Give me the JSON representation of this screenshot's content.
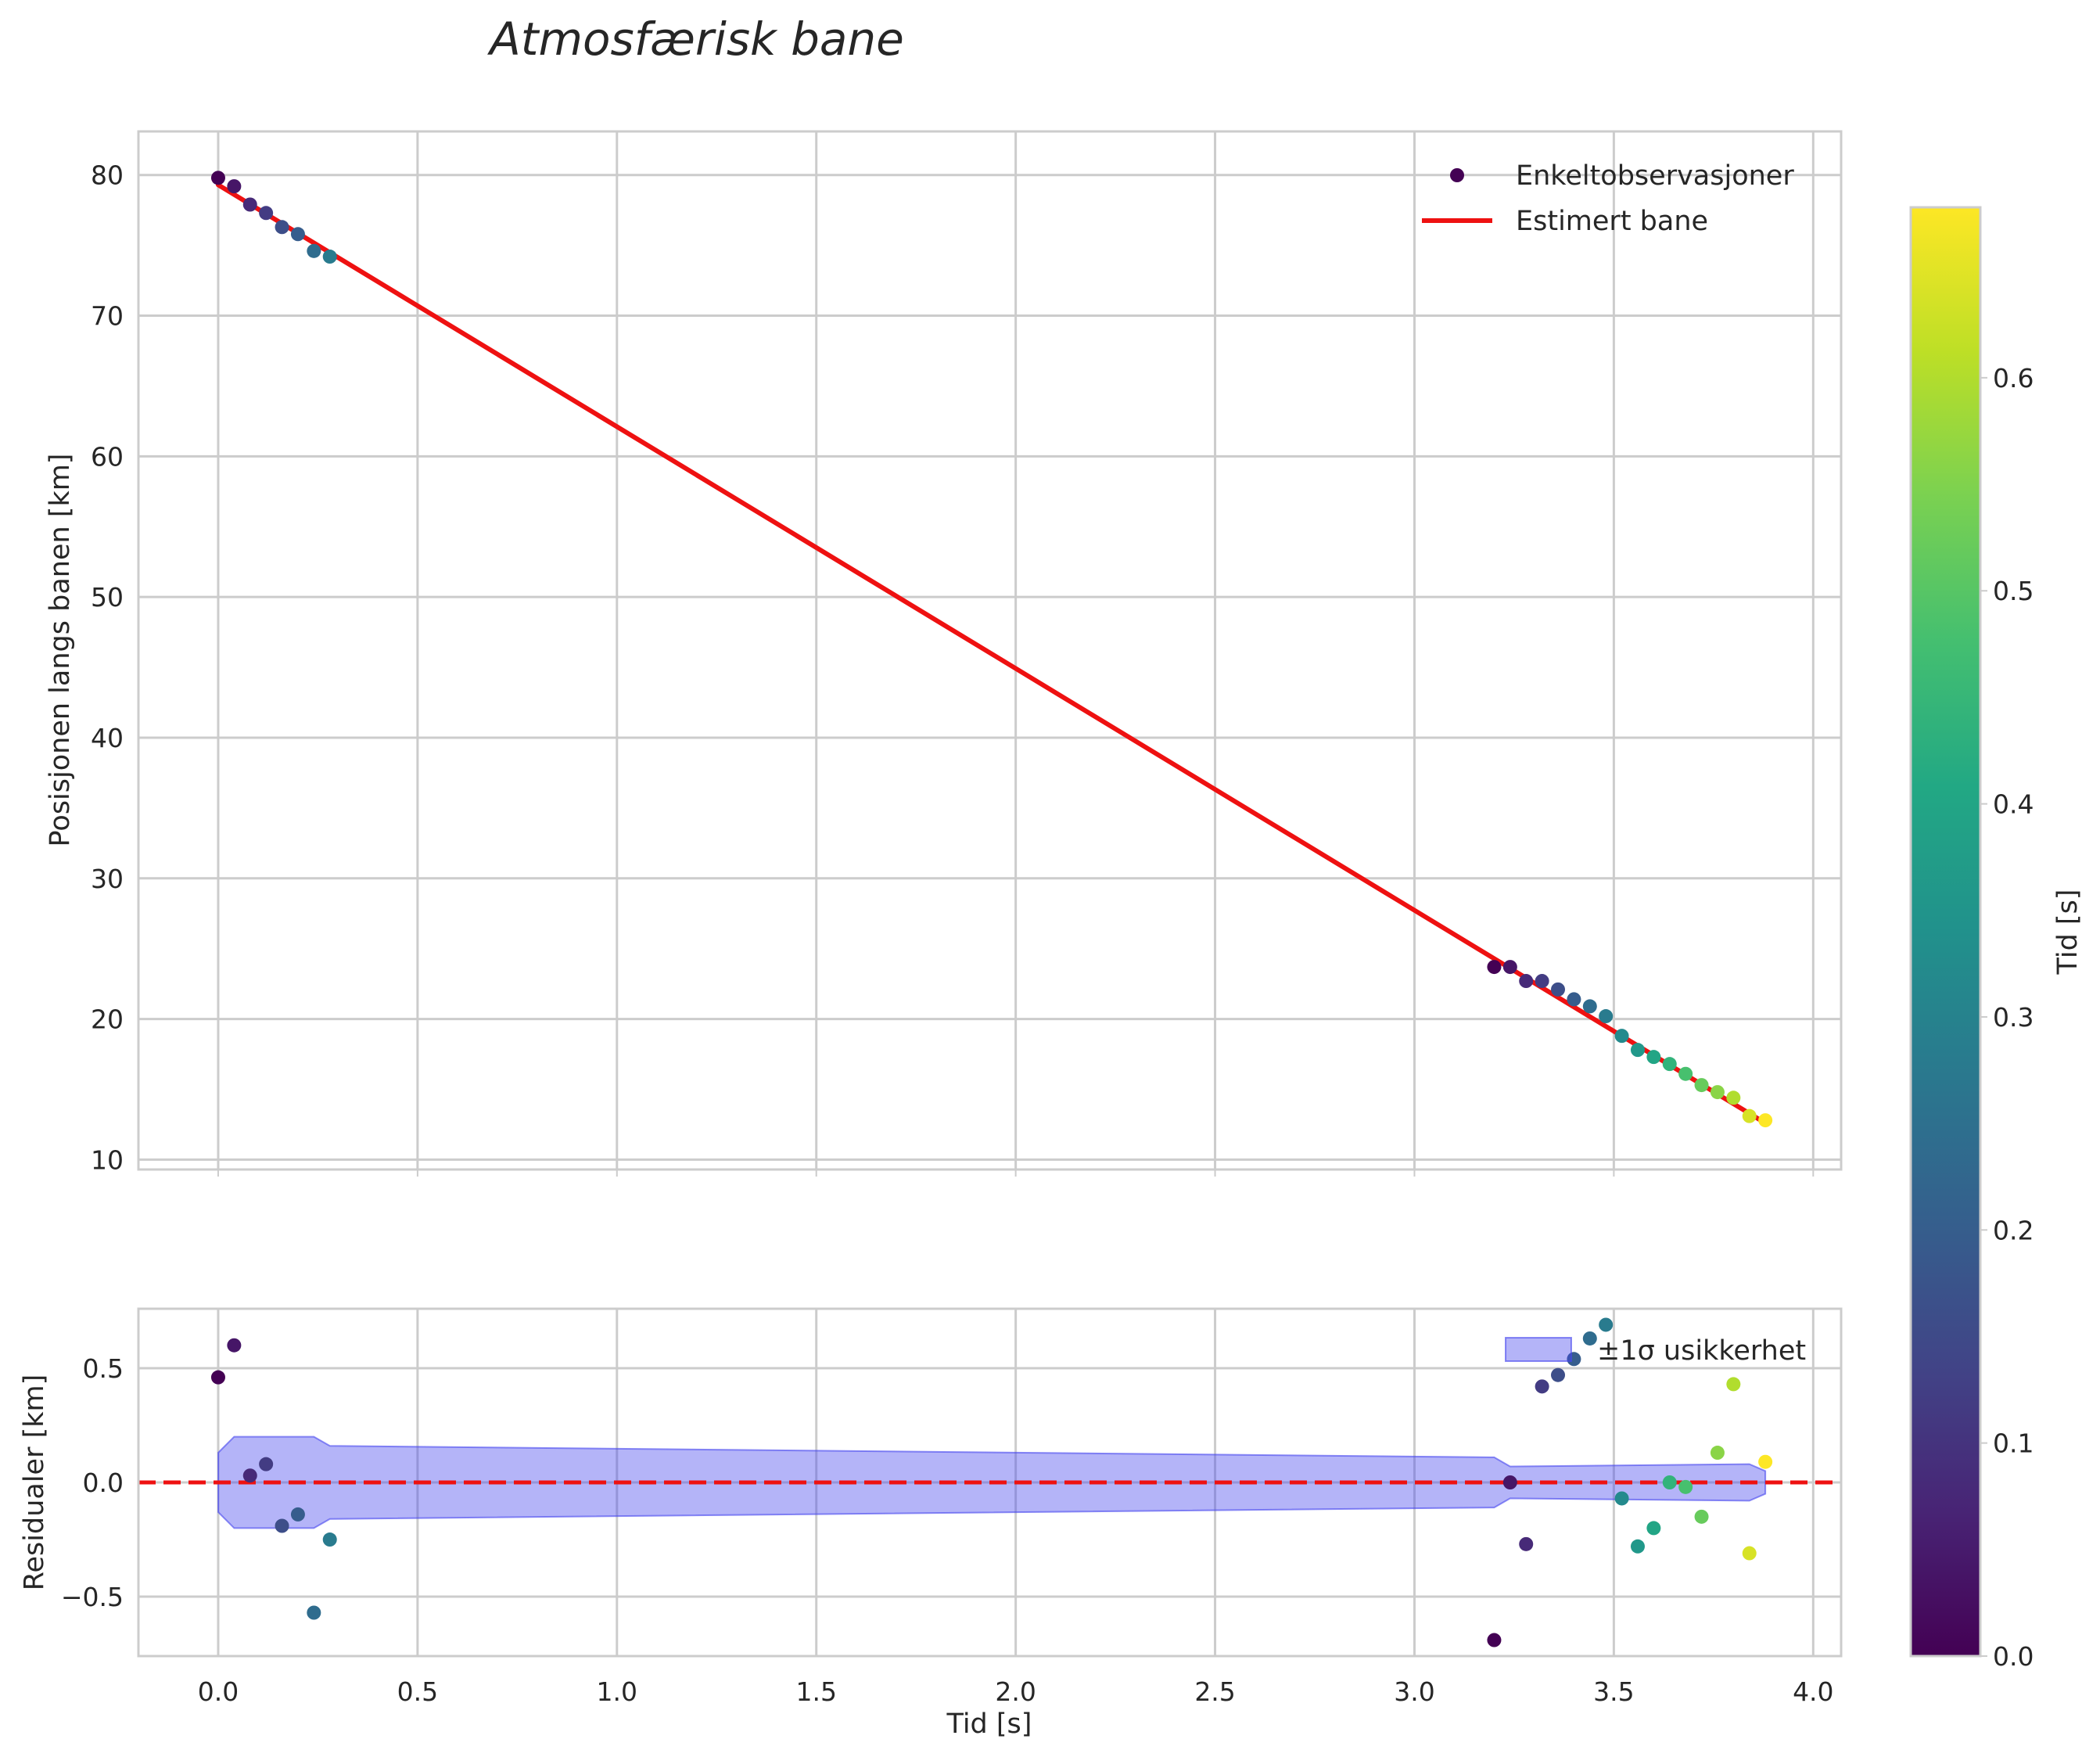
{
  "chart_data": {
    "type": "scatter",
    "title": "Atmosfærisk bane",
    "xlabel": "Tid [s]",
    "xlim": [
      -0.2,
      4.07
    ],
    "x_ticks": [
      "0.0",
      "0.5",
      "1.0",
      "1.5",
      "2.0",
      "2.5",
      "3.0",
      "3.5",
      "4.0"
    ],
    "grid": true,
    "colormap": "viridis",
    "colorbar": {
      "label": "Tid [s]",
      "range": [
        0.0,
        0.68
      ],
      "ticks": [
        "0.0",
        "0.1",
        "0.2",
        "0.3",
        "0.4",
        "0.5",
        "0.6"
      ]
    },
    "top_panel": {
      "ylabel": "Posisjonen langs banen [km]",
      "ylim": [
        9.3,
        83.1
      ],
      "y_ticks": [
        "10",
        "20",
        "30",
        "40",
        "50",
        "60",
        "70",
        "80"
      ],
      "legend_position": "upper right",
      "series": [
        {
          "name": "Enkeltobservasjoner",
          "kind": "scatter",
          "points": [
            {
              "x": 0.0,
              "y": 79.8,
              "c": 0.0
            },
            {
              "x": 0.04,
              "y": 79.2,
              "c": 0.04
            },
            {
              "x": 0.08,
              "y": 77.9,
              "c": 0.08
            },
            {
              "x": 0.12,
              "y": 77.3,
              "c": 0.12
            },
            {
              "x": 0.16,
              "y": 76.3,
              "c": 0.16
            },
            {
              "x": 0.2,
              "y": 75.8,
              "c": 0.2
            },
            {
              "x": 0.24,
              "y": 74.6,
              "c": 0.24
            },
            {
              "x": 0.28,
              "y": 74.2,
              "c": 0.28
            },
            {
              "x": 3.2,
              "y": 23.7,
              "c": 0.0
            },
            {
              "x": 3.24,
              "y": 23.7,
              "c": 0.04
            },
            {
              "x": 3.28,
              "y": 22.7,
              "c": 0.08
            },
            {
              "x": 3.32,
              "y": 22.7,
              "c": 0.12
            },
            {
              "x": 3.36,
              "y": 22.1,
              "c": 0.16
            },
            {
              "x": 3.4,
              "y": 21.4,
              "c": 0.2
            },
            {
              "x": 3.44,
              "y": 20.9,
              "c": 0.24
            },
            {
              "x": 3.48,
              "y": 20.2,
              "c": 0.28
            },
            {
              "x": 3.52,
              "y": 18.8,
              "c": 0.32
            },
            {
              "x": 3.56,
              "y": 17.8,
              "c": 0.36
            },
            {
              "x": 3.6,
              "y": 17.3,
              "c": 0.4
            },
            {
              "x": 3.64,
              "y": 16.8,
              "c": 0.44
            },
            {
              "x": 3.68,
              "y": 16.1,
              "c": 0.48
            },
            {
              "x": 3.72,
              "y": 15.3,
              "c": 0.52
            },
            {
              "x": 3.76,
              "y": 14.8,
              "c": 0.56
            },
            {
              "x": 3.8,
              "y": 14.4,
              "c": 0.6
            },
            {
              "x": 3.84,
              "y": 13.1,
              "c": 0.64
            },
            {
              "x": 3.88,
              "y": 12.8,
              "c": 0.68
            }
          ]
        },
        {
          "name": "Estimert bane",
          "kind": "line",
          "color": "#ee1111",
          "points": [
            {
              "x": 0.0,
              "y": 79.3
            },
            {
              "x": 3.88,
              "y": 12.6
            }
          ]
        }
      ]
    },
    "bottom_panel": {
      "ylabel": "Residualer [km]",
      "ylim": [
        -0.76,
        0.76
      ],
      "y_ticks": [
        "−0.5",
        "0.0",
        "0.5"
      ],
      "legend_position": "upper right",
      "zero_line": {
        "y": 0.0,
        "color": "#ee1111",
        "style": "dashed"
      },
      "band": {
        "name": "±1σ usikkerhet",
        "color": "#4444ee",
        "x": [
          0.0,
          0.04,
          0.24,
          0.28,
          3.2,
          3.24,
          3.84,
          3.88
        ],
        "upper": [
          0.13,
          0.2,
          0.2,
          0.16,
          0.11,
          0.07,
          0.08,
          0.05
        ],
        "lower": [
          -0.13,
          -0.2,
          -0.2,
          -0.16,
          -0.11,
          -0.07,
          -0.08,
          -0.05
        ]
      },
      "points": [
        {
          "x": 0.0,
          "y": 0.46,
          "c": 0.0
        },
        {
          "x": 0.04,
          "y": 0.6,
          "c": 0.04
        },
        {
          "x": 0.08,
          "y": 0.03,
          "c": 0.08
        },
        {
          "x": 0.12,
          "y": 0.08,
          "c": 0.12
        },
        {
          "x": 0.16,
          "y": -0.19,
          "c": 0.16
        },
        {
          "x": 0.2,
          "y": -0.14,
          "c": 0.2
        },
        {
          "x": 0.24,
          "y": -0.57,
          "c": 0.24
        },
        {
          "x": 0.28,
          "y": -0.25,
          "c": 0.28
        },
        {
          "x": 3.2,
          "y": -0.69,
          "c": 0.0
        },
        {
          "x": 3.24,
          "y": 0.0,
          "c": 0.04
        },
        {
          "x": 3.28,
          "y": -0.27,
          "c": 0.08
        },
        {
          "x": 3.32,
          "y": 0.42,
          "c": 0.12
        },
        {
          "x": 3.36,
          "y": 0.47,
          "c": 0.16
        },
        {
          "x": 3.4,
          "y": 0.54,
          "c": 0.2
        },
        {
          "x": 3.44,
          "y": 0.63,
          "c": 0.24
        },
        {
          "x": 3.48,
          "y": 0.69,
          "c": 0.28
        },
        {
          "x": 3.52,
          "y": -0.07,
          "c": 0.32
        },
        {
          "x": 3.56,
          "y": -0.28,
          "c": 0.36
        },
        {
          "x": 3.6,
          "y": -0.2,
          "c": 0.4
        },
        {
          "x": 3.64,
          "y": 0.0,
          "c": 0.44
        },
        {
          "x": 3.68,
          "y": -0.02,
          "c": 0.48
        },
        {
          "x": 3.72,
          "y": -0.15,
          "c": 0.52
        },
        {
          "x": 3.76,
          "y": 0.13,
          "c": 0.56
        },
        {
          "x": 3.8,
          "y": 0.43,
          "c": 0.6
        },
        {
          "x": 3.84,
          "y": -0.31,
          "c": 0.64
        },
        {
          "x": 3.88,
          "y": 0.09,
          "c": 0.68
        }
      ]
    }
  }
}
